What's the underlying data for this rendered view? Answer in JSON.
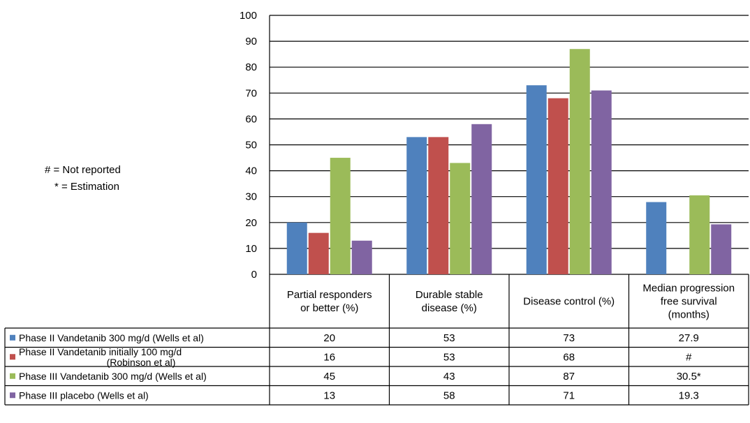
{
  "notes": [
    "# = Not reported",
    "* = Estimation"
  ],
  "chart_data": {
    "type": "bar",
    "title": "",
    "xlabel": "",
    "ylabel": "",
    "ylim": [
      0,
      100
    ],
    "yticks": [
      "0",
      "10",
      "20",
      "30",
      "40",
      "50",
      "60",
      "70",
      "80",
      "90",
      "100"
    ],
    "grid": true,
    "legend": "data-table-left",
    "categories": [
      [
        "Partial responders",
        "or better (%)"
      ],
      [
        "Durable stable",
        "disease (%)"
      ],
      [
        "Disease control (%)"
      ],
      [
        "Median progression",
        "free survival",
        "(months)"
      ]
    ],
    "series": [
      {
        "name": [
          "Phase II Vandetanib 300 mg/d (Wells et al)"
        ],
        "color": "#4F81BD",
        "values": [
          20,
          53,
          73,
          27.9
        ],
        "cells": [
          "20",
          "53",
          "73",
          "27.9"
        ]
      },
      {
        "name": [
          "Phase II Vandetanib initially 100 mg/d",
          "(Robinson et al)"
        ],
        "color": "#C0504D",
        "values": [
          16,
          53,
          68,
          null
        ],
        "cells": [
          "16",
          "53",
          "68",
          "#"
        ]
      },
      {
        "name": [
          "Phase III Vandetanib 300 mg/d (Wells et al)"
        ],
        "color": "#9BBB59",
        "values": [
          45,
          43,
          87,
          30.5
        ],
        "cells": [
          "45",
          "43",
          "87",
          "30.5*"
        ]
      },
      {
        "name": [
          "Phase III placebo (Wells et al)"
        ],
        "color": "#8064A2",
        "values": [
          13,
          58,
          71,
          19.3
        ],
        "cells": [
          "13",
          "58",
          "71",
          "19.3"
        ]
      }
    ]
  }
}
